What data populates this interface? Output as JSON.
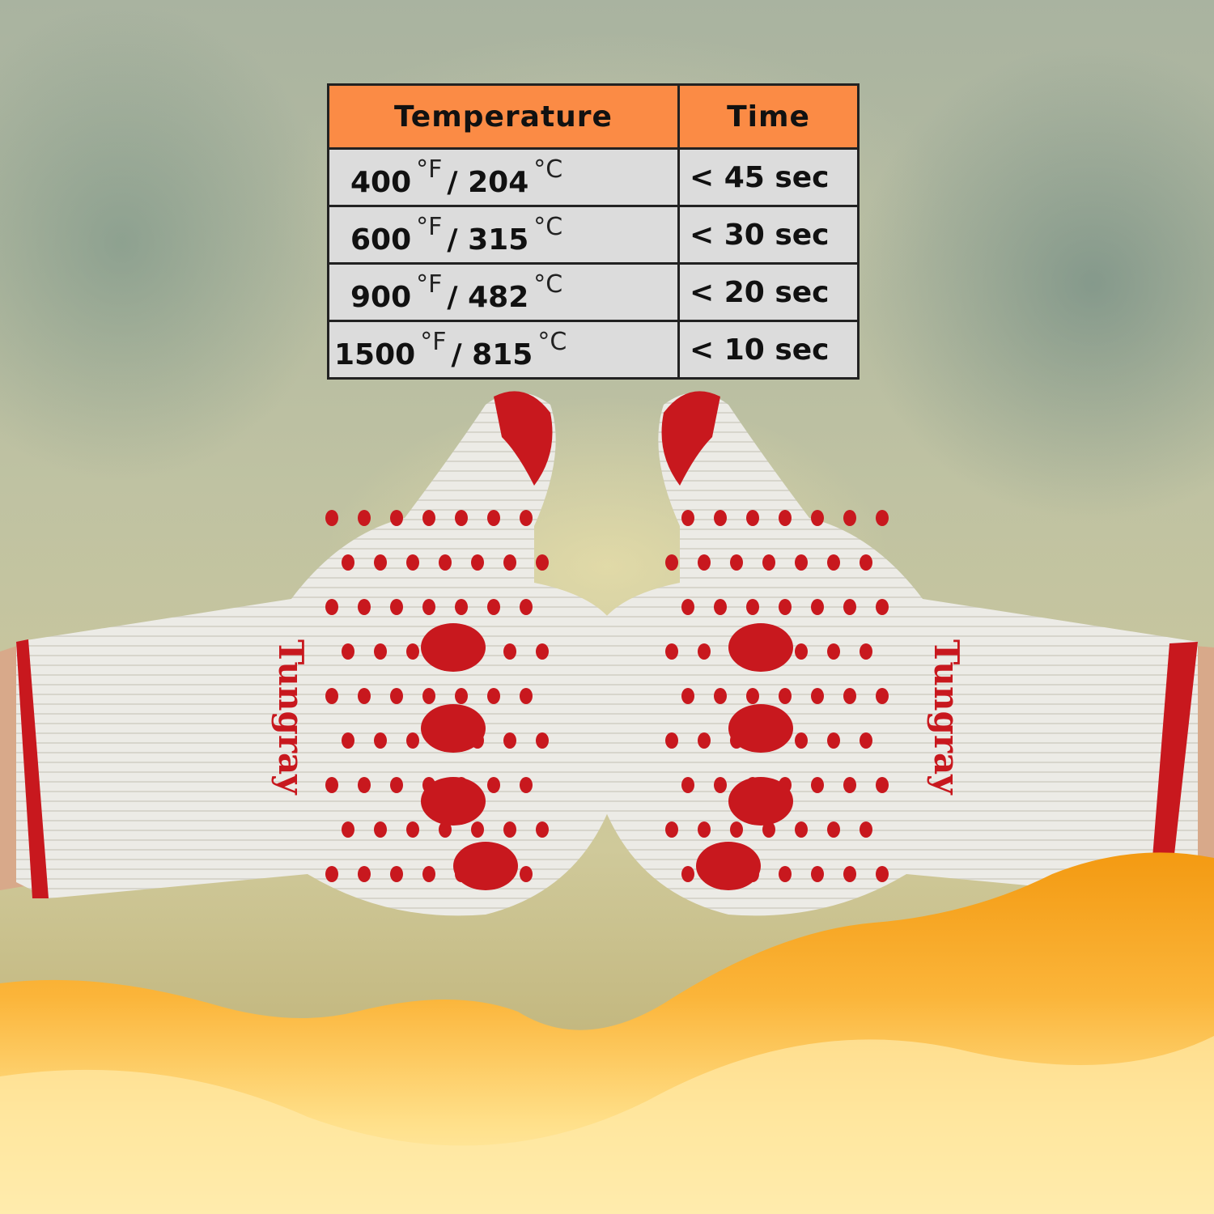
{
  "table": {
    "headers": [
      "Temperature",
      "Time"
    ],
    "rows": [
      {
        "fahrenheit": "400",
        "celsius": "204",
        "time": "< 45 sec"
      },
      {
        "fahrenheit": "600",
        "celsius": "315",
        "time": "< 30 sec"
      },
      {
        "fahrenheit": "900",
        "celsius": "482",
        "time": "< 20 sec"
      },
      {
        "fahrenheit": "1500",
        "celsius": "815",
        "time": "< 10 sec"
      }
    ],
    "unit_f": "°F",
    "unit_c": "°C",
    "separator": "/",
    "header_color": "#fb8b45",
    "cell_color": "#dcdcdc"
  },
  "glove": {
    "logo_text": "Tungray",
    "base_color": "#ecebe6",
    "print_color": "#c8181e"
  },
  "flame_colors": [
    "#f7a21b",
    "#ffd860",
    "#fff3c0"
  ]
}
